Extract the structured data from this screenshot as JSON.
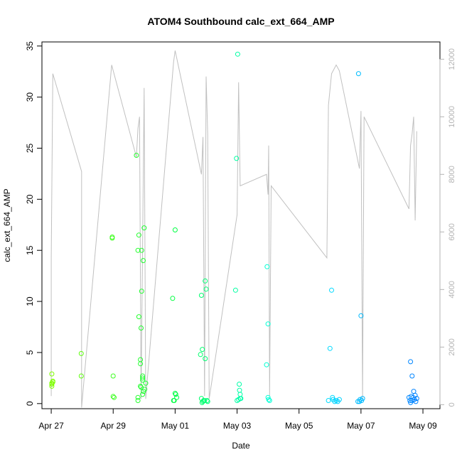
{
  "chart_data": {
    "type": "scatter",
    "title": "ATOM4 Southbound calc_ext_664_AMP",
    "xlabel": "Date",
    "ylabel": "calc_ext_664_AMP",
    "xlim": [
      -0.3,
      12.55
    ],
    "ylim": [
      -0.5,
      35.4
    ],
    "x_ticks": [
      {
        "label": "Apr 27",
        "value": 0
      },
      {
        "label": "Apr 29",
        "value": 2
      },
      {
        "label": "May 01",
        "value": 4
      },
      {
        "label": "May 03",
        "value": 6
      },
      {
        "label": "May 05",
        "value": 8
      },
      {
        "label": "May 07",
        "value": 10
      },
      {
        "label": "May 09",
        "value": 12
      }
    ],
    "y_ticks": [
      0,
      5,
      10,
      15,
      20,
      25,
      30,
      35
    ],
    "secondary_axis": {
      "side": "right",
      "color": "#b3b3b3",
      "ylim": [
        -140,
        12600
      ],
      "ticks": [
        0,
        2000,
        4000,
        6000,
        8000,
        10000,
        12000
      ]
    },
    "grid": false,
    "legend": "none",
    "color_scale": [
      "#7FFF00",
      "#00FF40",
      "#00FFFF",
      "#0080FF"
    ],
    "series": [
      {
        "type": "points",
        "points": [
          [
            0.02,
            2.9
          ],
          [
            0.02,
            1.9
          ],
          [
            0.02,
            2.0
          ],
          [
            0.02,
            1.7
          ],
          [
            0.05,
            2.2
          ],
          [
            0.05,
            2.1
          ],
          [
            0.97,
            2.7
          ],
          [
            0.97,
            4.9
          ],
          [
            1.97,
            16.3
          ],
          [
            1.97,
            16.2
          ],
          [
            2.0,
            2.7
          ],
          [
            2.0,
            0.7
          ],
          [
            2.03,
            0.6
          ],
          [
            2.75,
            24.3
          ],
          [
            2.8,
            15.0
          ],
          [
            2.8,
            0.3
          ],
          [
            2.8,
            0.6
          ],
          [
            2.83,
            16.5
          ],
          [
            2.83,
            8.5
          ],
          [
            2.88,
            4.3
          ],
          [
            2.88,
            3.9
          ],
          [
            2.88,
            1.7
          ],
          [
            2.9,
            7.4
          ],
          [
            2.9,
            1.6
          ],
          [
            2.92,
            11.0
          ],
          [
            2.92,
            15.0
          ],
          [
            2.95,
            2.7
          ],
          [
            2.95,
            2.5
          ],
          [
            2.95,
            2.3
          ],
          [
            2.95,
            0.9
          ],
          [
            2.97,
            14.0
          ],
          [
            2.98,
            1.2
          ],
          [
            3.0,
            17.2
          ],
          [
            3.02,
            1.4
          ],
          [
            3.05,
            2.0
          ],
          [
            3.92,
            10.3
          ],
          [
            3.95,
            0.3
          ],
          [
            3.97,
            0.3
          ],
          [
            4.0,
            17.0
          ],
          [
            4.0,
            1.0
          ],
          [
            4.02,
            0.9
          ],
          [
            4.05,
            0.6
          ],
          [
            4.82,
            4.8
          ],
          [
            4.85,
            10.6
          ],
          [
            4.85,
            0.5
          ],
          [
            4.88,
            5.3
          ],
          [
            4.9,
            0.2
          ],
          [
            4.92,
            0.3
          ],
          [
            4.95,
            0.3
          ],
          [
            4.97,
            4.4
          ],
          [
            4.97,
            12.0
          ],
          [
            5.0,
            11.2
          ],
          [
            5.03,
            0.3
          ],
          [
            5.05,
            0.2
          ],
          [
            4.87,
            0.1
          ],
          [
            5.95,
            11.1
          ],
          [
            5.98,
            24.0
          ],
          [
            6.02,
            34.2
          ],
          [
            6.05,
            0.4
          ],
          [
            6.07,
            1.9
          ],
          [
            6.08,
            1.3
          ],
          [
            6.1,
            0.9
          ],
          [
            6.1,
            0.5
          ],
          [
            6.12,
            0.5
          ],
          [
            6.0,
            0.3
          ],
          [
            6.95,
            3.8
          ],
          [
            6.97,
            13.4
          ],
          [
            7.0,
            7.8
          ],
          [
            7.0,
            0.6
          ],
          [
            7.02,
            0.4
          ],
          [
            7.05,
            0.3
          ],
          [
            8.95,
            0.3
          ],
          [
            9.0,
            5.4
          ],
          [
            9.05,
            11.1
          ],
          [
            9.08,
            0.6
          ],
          [
            9.1,
            0.4
          ],
          [
            9.15,
            0.2
          ],
          [
            9.2,
            0.3
          ],
          [
            9.25,
            0.2
          ],
          [
            9.3,
            0.4
          ],
          [
            9.92,
            32.3
          ],
          [
            9.95,
            0.2
          ],
          [
            9.97,
            0.4
          ],
          [
            10.0,
            8.6
          ],
          [
            10.02,
            0.3
          ],
          [
            10.05,
            0.5
          ],
          [
            9.9,
            0.2
          ],
          [
            11.6,
            4.1
          ],
          [
            11.62,
            0.7
          ],
          [
            11.65,
            2.7
          ],
          [
            11.65,
            0.3
          ],
          [
            11.68,
            0.6
          ],
          [
            11.7,
            1.2
          ],
          [
            11.72,
            0.4
          ],
          [
            11.75,
            0.8
          ],
          [
            11.77,
            0.2
          ],
          [
            11.8,
            0.5
          ],
          [
            11.58,
            0.3
          ],
          [
            11.55,
            0.6
          ],
          [
            11.6,
            0.1
          ]
        ]
      },
      {
        "type": "secondary_line",
        "name": "",
        "color": "#c0c0c0",
        "points": [
          [
            0.0,
            300
          ],
          [
            0.0,
            5100
          ],
          [
            0.05,
            11500
          ],
          [
            0.98,
            8100
          ],
          [
            0.98,
            -100
          ],
          [
            1.95,
            11800
          ],
          [
            2.75,
            8600
          ],
          [
            2.8,
            9600
          ],
          [
            2.85,
            10000
          ],
          [
            2.9,
            200
          ],
          [
            3.0,
            11000
          ],
          [
            3.05,
            200
          ],
          [
            3.95,
            11900
          ],
          [
            4.0,
            12300
          ],
          [
            4.85,
            8000
          ],
          [
            4.9,
            9300
          ],
          [
            4.95,
            300
          ],
          [
            5.0,
            11400
          ],
          [
            5.05,
            9400
          ],
          [
            5.1,
            200
          ],
          [
            6.0,
            6600
          ],
          [
            6.05,
            11200
          ],
          [
            6.1,
            7600
          ],
          [
            6.95,
            8000
          ],
          [
            7.0,
            7300
          ],
          [
            7.02,
            9000
          ],
          [
            7.05,
            300
          ],
          [
            7.1,
            7600
          ],
          [
            8.9,
            5100
          ],
          [
            8.95,
            10400
          ],
          [
            9.05,
            11500
          ],
          [
            9.2,
            11800
          ],
          [
            9.3,
            11600
          ],
          [
            9.95,
            8200
          ],
          [
            10.0,
            10200
          ],
          [
            10.05,
            200
          ],
          [
            10.1,
            10000
          ],
          [
            11.55,
            6800
          ],
          [
            11.6,
            9000
          ],
          [
            11.65,
            9400
          ],
          [
            11.7,
            10000
          ],
          [
            11.75,
            6400
          ],
          [
            11.8,
            9500
          ]
        ]
      }
    ]
  }
}
